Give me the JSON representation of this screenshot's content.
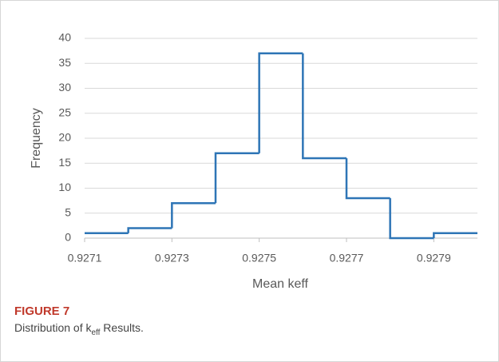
{
  "chart_data": {
    "type": "histogram",
    "xlabel": "Mean keff",
    "ylabel": "Frequency",
    "bins": [
      0.9271,
      0.9272,
      0.9273,
      0.9274,
      0.9275,
      0.9276,
      0.9277,
      0.9278,
      0.9279,
      0.928
    ],
    "values": [
      1,
      2,
      7,
      17,
      37,
      16,
      8,
      0,
      1
    ],
    "color": "#2e75b6",
    "xlim": [
      0.9271,
      0.928
    ],
    "xticks": [
      0.9271,
      0.9273,
      0.9275,
      0.9277,
      0.9279
    ],
    "ylim": [
      0,
      40
    ],
    "yticks": [
      0,
      5,
      10,
      15,
      20,
      25,
      30,
      35,
      40
    ],
    "grid": true
  },
  "figure": {
    "label": "FIGURE 7",
    "text": [
      "Distribution of k",
      "eff",
      " Results."
    ]
  }
}
